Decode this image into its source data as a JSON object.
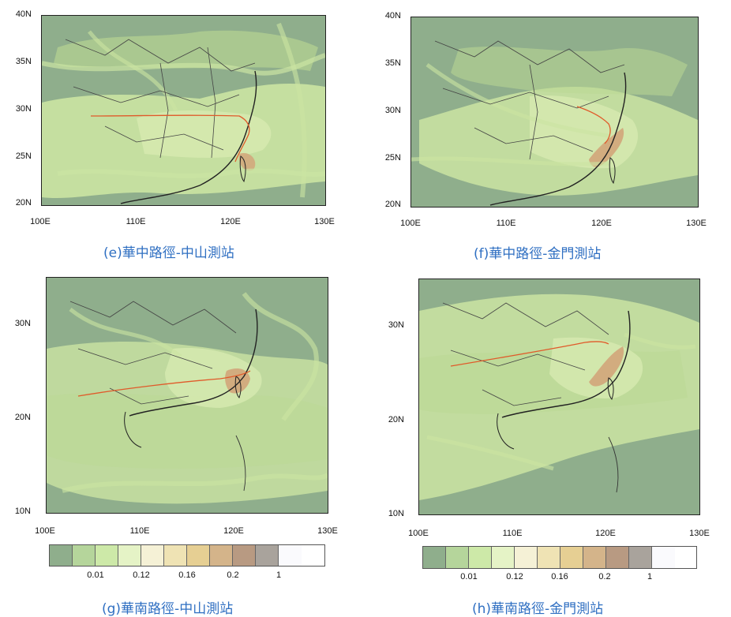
{
  "panels": [
    {
      "id": "e",
      "caption": "(e)華中路徑-中山測站",
      "lat_labels": [
        "40N",
        "35N",
        "30N",
        "25N",
        "20N"
      ],
      "lon_labels": [
        "100E",
        "110E",
        "120E",
        "130E"
      ]
    },
    {
      "id": "f",
      "caption": "(f)華中路徑-金門測站",
      "lat_labels": [
        "40N",
        "35N",
        "30N",
        "25N",
        "20N"
      ],
      "lon_labels": [
        "100E",
        "110E",
        "120E",
        "130E"
      ]
    },
    {
      "id": "g",
      "caption": "(g)華南路徑-中山測站",
      "lat_labels": [
        "30N",
        "20N",
        "10N"
      ],
      "lon_labels": [
        "100E",
        "110E",
        "120E",
        "130E"
      ],
      "colorbar_labels": [
        "0.01",
        "0.12",
        "0.16",
        "0.2",
        "1"
      ]
    },
    {
      "id": "h",
      "caption": "(h)華南路徑-金門測站",
      "lat_labels": [
        "30N",
        "20N",
        "10N"
      ],
      "lon_labels": [
        "100E",
        "110E",
        "120E",
        "130E"
      ],
      "colorbar_labels": [
        "0.01",
        "0.12",
        "0.16",
        "0.2",
        "1"
      ]
    }
  ],
  "colorbar_colors": [
    "#8fae8c",
    "#b5d59b",
    "#cde9a8",
    "#e5f3c6",
    "#f5f1d6",
    "#efe3b4",
    "#e6cf93",
    "#d4b48a",
    "#b89a82",
    "#a9a39c",
    "#fafafd"
  ],
  "colors": {
    "ocean": "#8fae8c",
    "plume_light": "#cbe4a2",
    "plume_mid": "#bcd993",
    "hotspot": "#d2a97c",
    "trajectory": "#e05a2a",
    "caption": "#2f6fc2"
  }
}
